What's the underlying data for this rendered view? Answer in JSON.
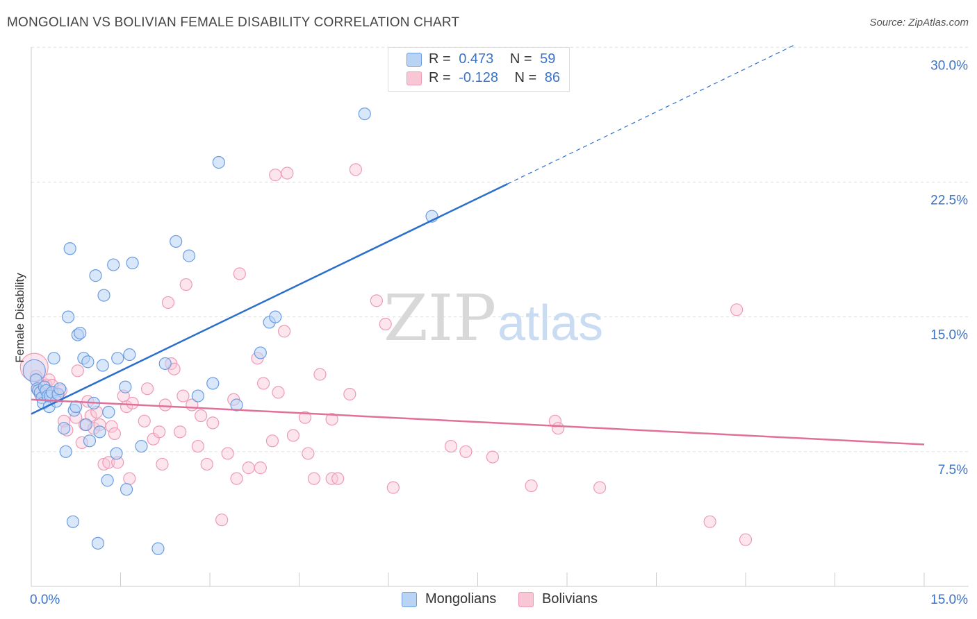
{
  "title": "MONGOLIAN VS BOLIVIAN FEMALE DISABILITY CORRELATION CHART",
  "source": "Source: ZipAtlas.com",
  "watermark": {
    "zip": "ZIP",
    "atlas": "atlas"
  },
  "legend": {
    "mongolians": {
      "r_label": "R =",
      "r_value": "0.473",
      "n_label": "N =",
      "n_value": "59"
    },
    "bolivians": {
      "r_label": "R =",
      "r_value": "-0.128",
      "n_label": "N =",
      "n_value": "86"
    }
  },
  "bottom_legend": {
    "mongolians": "Mongolians",
    "bolivians": "Bolivians"
  },
  "colors": {
    "mongolians_fill": "#b9d3f5",
    "mongolians_stroke": "#6b9be0",
    "mongolians_line": "#2a6fcb",
    "bolivians_fill": "#f9c6d6",
    "bolivians_stroke": "#ee9ab5",
    "bolivians_line": "#e0709a",
    "tick_label": "#3a73c8",
    "grid": "#dddddd"
  },
  "chart_data": {
    "type": "scatter",
    "title": "MONGOLIAN VS BOLIVIAN FEMALE DISABILITY CORRELATION CHART",
    "xlabel": "",
    "ylabel": "Female Disability",
    "xlim": [
      0,
      15
    ],
    "ylim": [
      0,
      30.9
    ],
    "x_tick_labels": [
      "0.0%",
      "15.0%"
    ],
    "y_ticks": [
      7.5,
      15.0,
      22.5,
      30.0
    ],
    "y_tick_labels": [
      "7.5%",
      "15.0%",
      "22.5%",
      "30.0%"
    ],
    "grid": "horizontal dashed",
    "legend_position": "top-center",
    "series": [
      {
        "name": "Mongolians",
        "points": [
          [
            0.05,
            12.0
          ],
          [
            0.08,
            11.5
          ],
          [
            0.1,
            11.0
          ],
          [
            0.12,
            10.9
          ],
          [
            0.15,
            10.8
          ],
          [
            0.18,
            10.5
          ],
          [
            0.2,
            10.2
          ],
          [
            0.22,
            11.1
          ],
          [
            0.25,
            10.9
          ],
          [
            0.28,
            10.6
          ],
          [
            0.3,
            10.0
          ],
          [
            0.32,
            10.6
          ],
          [
            0.35,
            10.8
          ],
          [
            0.38,
            12.7
          ],
          [
            0.42,
            10.3
          ],
          [
            0.45,
            10.7
          ],
          [
            0.48,
            11.0
          ],
          [
            0.55,
            8.8
          ],
          [
            0.58,
            7.5
          ],
          [
            0.62,
            15.0
          ],
          [
            0.65,
            18.8
          ],
          [
            0.7,
            3.6
          ],
          [
            0.72,
            9.8
          ],
          [
            0.75,
            10.0
          ],
          [
            0.78,
            14.0
          ],
          [
            0.82,
            14.1
          ],
          [
            0.88,
            12.7
          ],
          [
            0.92,
            9.0
          ],
          [
            0.95,
            12.5
          ],
          [
            0.98,
            8.1
          ],
          [
            1.05,
            10.2
          ],
          [
            1.08,
            17.3
          ],
          [
            1.12,
            2.4
          ],
          [
            1.15,
            8.6
          ],
          [
            1.2,
            12.3
          ],
          [
            1.22,
            16.2
          ],
          [
            1.28,
            5.9
          ],
          [
            1.3,
            9.7
          ],
          [
            1.38,
            17.9
          ],
          [
            1.43,
            7.4
          ],
          [
            1.45,
            12.7
          ],
          [
            1.58,
            11.1
          ],
          [
            1.6,
            5.4
          ],
          [
            1.65,
            12.9
          ],
          [
            1.7,
            18.0
          ],
          [
            1.85,
            7.8
          ],
          [
            2.13,
            2.1
          ],
          [
            2.25,
            12.4
          ],
          [
            2.43,
            19.2
          ],
          [
            2.65,
            18.4
          ],
          [
            2.8,
            10.6
          ],
          [
            3.05,
            11.3
          ],
          [
            3.15,
            23.6
          ],
          [
            3.45,
            10.1
          ],
          [
            3.85,
            13.0
          ],
          [
            4.0,
            14.7
          ],
          [
            4.1,
            15.0
          ],
          [
            5.6,
            26.3
          ],
          [
            6.73,
            20.6
          ]
        ],
        "trend": {
          "x0": 0.0,
          "y0": 9.6,
          "x1": 8.0,
          "y1": 22.4,
          "dashed_to": {
            "x": 12.8,
            "y": 30.1
          }
        }
      },
      {
        "name": "Bolivians",
        "points": [
          [
            0.05,
            12.2
          ],
          [
            0.08,
            11.7
          ],
          [
            0.1,
            11.0
          ],
          [
            0.12,
            10.9
          ],
          [
            0.15,
            10.7
          ],
          [
            0.2,
            11.3
          ],
          [
            0.25,
            11.2
          ],
          [
            0.3,
            11.5
          ],
          [
            0.35,
            11.2
          ],
          [
            0.4,
            10.8
          ],
          [
            0.45,
            10.6
          ],
          [
            0.5,
            10.9
          ],
          [
            0.55,
            9.2
          ],
          [
            0.6,
            8.7
          ],
          [
            0.75,
            9.4
          ],
          [
            0.78,
            12.0
          ],
          [
            0.85,
            8.0
          ],
          [
            0.9,
            9.0
          ],
          [
            0.95,
            10.3
          ],
          [
            1.0,
            9.5
          ],
          [
            1.05,
            8.8
          ],
          [
            1.1,
            9.7
          ],
          [
            1.15,
            9.0
          ],
          [
            1.22,
            6.8
          ],
          [
            1.3,
            6.9
          ],
          [
            1.35,
            8.9
          ],
          [
            1.4,
            8.5
          ],
          [
            1.45,
            6.9
          ],
          [
            1.55,
            10.6
          ],
          [
            1.6,
            10.0
          ],
          [
            1.65,
            6.0
          ],
          [
            1.7,
            10.2
          ],
          [
            1.9,
            9.2
          ],
          [
            1.95,
            11.0
          ],
          [
            2.05,
            8.2
          ],
          [
            2.15,
            8.6
          ],
          [
            2.2,
            6.8
          ],
          [
            2.25,
            10.1
          ],
          [
            2.3,
            15.8
          ],
          [
            2.35,
            12.4
          ],
          [
            2.4,
            12.1
          ],
          [
            2.5,
            8.6
          ],
          [
            2.55,
            10.6
          ],
          [
            2.6,
            16.8
          ],
          [
            2.7,
            10.1
          ],
          [
            2.8,
            7.8
          ],
          [
            2.85,
            9.5
          ],
          [
            2.95,
            6.8
          ],
          [
            3.05,
            9.1
          ],
          [
            3.2,
            3.7
          ],
          [
            3.3,
            7.4
          ],
          [
            3.4,
            10.4
          ],
          [
            3.45,
            6.0
          ],
          [
            3.5,
            17.4
          ],
          [
            3.65,
            6.6
          ],
          [
            3.8,
            12.7
          ],
          [
            3.85,
            6.6
          ],
          [
            3.9,
            11.3
          ],
          [
            4.05,
            8.1
          ],
          [
            4.1,
            22.9
          ],
          [
            4.15,
            10.8
          ],
          [
            4.25,
            14.2
          ],
          [
            4.3,
            23.0
          ],
          [
            4.4,
            8.4
          ],
          [
            4.6,
            9.4
          ],
          [
            4.65,
            7.4
          ],
          [
            4.75,
            6.0
          ],
          [
            4.85,
            11.8
          ],
          [
            5.05,
            9.3
          ],
          [
            5.05,
            6.0
          ],
          [
            5.15,
            6.0
          ],
          [
            5.35,
            10.7
          ],
          [
            5.45,
            23.2
          ],
          [
            5.8,
            15.9
          ],
          [
            5.95,
            14.6
          ],
          [
            6.08,
            5.5
          ],
          [
            7.05,
            7.8
          ],
          [
            7.3,
            7.5
          ],
          [
            7.75,
            7.2
          ],
          [
            8.4,
            5.6
          ],
          [
            8.8,
            9.2
          ],
          [
            8.85,
            8.8
          ],
          [
            9.55,
            5.5
          ],
          [
            11.4,
            3.6
          ],
          [
            11.85,
            15.4
          ],
          [
            12.0,
            2.6
          ]
        ],
        "trend": {
          "x0": 0.0,
          "y0": 10.4,
          "x1": 15.0,
          "y1": 7.9
        }
      }
    ]
  }
}
